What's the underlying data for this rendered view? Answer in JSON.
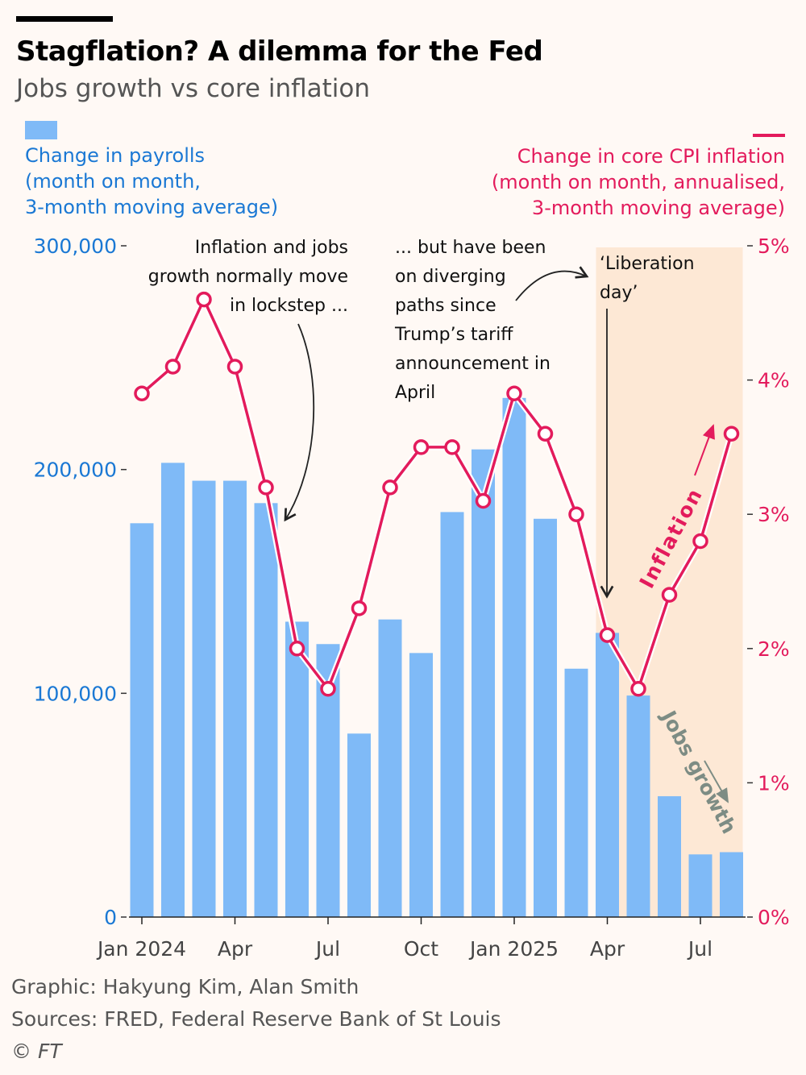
{
  "header": {
    "title": "Stagflation? A dilemma for the Fed",
    "subtitle": "Jobs growth vs core inflation"
  },
  "legend": {
    "left": [
      "Change in payrolls",
      "(month on month,",
      "3-month moving average)"
    ],
    "right": [
      "Change in core CPI inflation",
      "(month on month, annualised,",
      "3-month moving average)"
    ]
  },
  "annotations": {
    "lockstep": [
      "Inflation and jobs",
      "growth normally move",
      "in lockstep ..."
    ],
    "diverging": [
      "... but have been",
      "on diverging",
      "paths since",
      "Trump’s tariff",
      "announcement in",
      "April"
    ],
    "liberation": [
      "‘Liberation",
      "day’"
    ],
    "inflation_label": "Inflation",
    "jobs_label": "Jobs growth"
  },
  "footer": {
    "credit": "Graphic: Hakyung Kim, Alan Smith",
    "sources": "Sources: FRED, Federal Reserve Bank of St Louis",
    "copyright": "© FT"
  },
  "colors": {
    "background": "#fff9f5",
    "bars": "#7fbaf7",
    "line": "#e31b5c",
    "left_axis": "#1a78d4",
    "shade": "#fde8d5",
    "jobs_label": "#7d8c84"
  },
  "chart_data": {
    "type": "bar+line",
    "months": [
      "Jan 2024",
      "Feb 2024",
      "Mar 2024",
      "Apr 2024",
      "May 2024",
      "Jun 2024",
      "Jul 2024",
      "Aug 2024",
      "Sep 2024",
      "Oct 2024",
      "Nov 2024",
      "Dec 2024",
      "Jan 2025",
      "Feb 2025",
      "Mar 2025",
      "Apr 2025",
      "May 2025",
      "Jun 2025",
      "Jul 2025",
      "Aug 2025"
    ],
    "x_ticks": [
      {
        "label": "Jan 2024",
        "index": 0
      },
      {
        "label": "Apr",
        "index": 3
      },
      {
        "label": "Jul",
        "index": 6
      },
      {
        "label": "Oct",
        "index": 9
      },
      {
        "label": "Jan 2025",
        "index": 12
      },
      {
        "label": "Apr",
        "index": 15
      },
      {
        "label": "Jul",
        "index": 18
      }
    ],
    "series": [
      {
        "name": "Change in payrolls",
        "axis": "left",
        "type": "bar",
        "values": [
          176000,
          203000,
          195000,
          195000,
          185000,
          132000,
          122000,
          82000,
          133000,
          118000,
          181000,
          209000,
          232000,
          178000,
          111000,
          127000,
          99000,
          54000,
          28000,
          29000
        ]
      },
      {
        "name": "Change in core CPI inflation",
        "axis": "right",
        "type": "line",
        "values": [
          3.9,
          4.1,
          4.6,
          4.1,
          3.2,
          2.0,
          1.7,
          2.3,
          3.2,
          3.5,
          3.5,
          3.1,
          3.9,
          3.6,
          3.0,
          2.1,
          1.7,
          2.4,
          2.8,
          3.6
        ]
      }
    ],
    "left_axis": {
      "ylim": [
        0,
        300000
      ],
      "ticks": [
        "0",
        "100,000",
        "200,000",
        "300,000"
      ],
      "tick_values": [
        0,
        100000,
        200000,
        300000
      ]
    },
    "right_axis": {
      "ylim": [
        0,
        5
      ],
      "ticks": [
        "0%",
        "1%",
        "2%",
        "3%",
        "4%",
        "5%"
      ],
      "tick_values": [
        0,
        1,
        2,
        3,
        4,
        5
      ]
    },
    "shaded_region": {
      "from": "Apr 2025",
      "to": "Aug 2025"
    },
    "grid": false
  }
}
